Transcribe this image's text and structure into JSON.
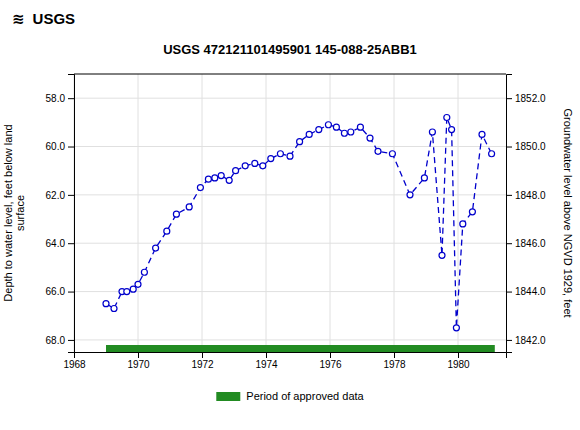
{
  "chart_data": {
    "type": "line",
    "title": "USGS 472121101495901 145-088-25ABB1",
    "annotations": [
      "≋",
      "USGS"
    ],
    "ylabel": "Depth to water level, feet below land\n surface",
    "y2label": "Groundwater level above NGVD 1929, feet",
    "x": [
      1969.0,
      1969.25,
      1969.5,
      1969.65,
      1969.85,
      1970.0,
      1970.2,
      1970.55,
      1970.9,
      1971.2,
      1971.6,
      1971.95,
      1972.2,
      1972.4,
      1972.6,
      1972.85,
      1973.05,
      1973.35,
      1973.65,
      1973.9,
      1974.15,
      1974.45,
      1974.75,
      1975.05,
      1975.35,
      1975.65,
      1975.95,
      1976.2,
      1976.45,
      1976.65,
      1976.95,
      1977.25,
      1977.5,
      1977.95,
      1978.5,
      1978.95,
      1979.2,
      1979.5,
      1979.65,
      1979.8,
      1979.95,
      1980.15,
      1980.45,
      1980.75,
      1981.05
    ],
    "series": [
      {
        "color": "#0000cc",
        "marker": "circle",
        "line_style": "dashed",
        "values": [
          66.5,
          66.7,
          66.0,
          66.0,
          65.9,
          65.7,
          65.2,
          64.2,
          63.5,
          62.8,
          62.5,
          61.7,
          61.35,
          61.3,
          61.2,
          61.4,
          61.0,
          60.8,
          60.7,
          60.8,
          60.5,
          60.3,
          60.4,
          59.8,
          59.5,
          59.3,
          59.1,
          59.2,
          59.45,
          59.4,
          59.2,
          59.65,
          60.2,
          60.3,
          62.0,
          61.3,
          59.4,
          64.5,
          58.8,
          59.3,
          67.5,
          63.2,
          62.7,
          59.5,
          60.3
        ]
      }
    ],
    "spans": [
      {
        "name": "Period of approved data",
        "start": 1969.0,
        "end": 1981.15,
        "color": "#228B22"
      }
    ],
    "xlim": [
      1968,
      1981.5
    ],
    "xticks": [
      1968,
      1970,
      1972,
      1974,
      1976,
      1978,
      1980
    ],
    "ylim": [
      68.5,
      57.0
    ],
    "yticks": [
      {
        "value": 58.0,
        "label": "58.0"
      },
      {
        "value": 60.0,
        "label": "60.0"
      },
      {
        "value": 62.0,
        "label": "62.0"
      },
      {
        "value": 64.0,
        "label": "64.0"
      },
      {
        "value": 66.0,
        "label": "66.0"
      },
      {
        "value": 68.0,
        "label": "68.0"
      }
    ],
    "y2lim": [
      1841.5,
      1853.0
    ],
    "y2ticks": [
      {
        "value": 1842.0,
        "label": "1842.0"
      },
      {
        "value": 1844.0,
        "label": "1844.0"
      },
      {
        "value": 1846.0,
        "label": "1846.0"
      },
      {
        "value": 1848.0,
        "label": "1848.0"
      },
      {
        "value": 1850.0,
        "label": "1850.0"
      },
      {
        "value": 1852.0,
        "label": "1852.0"
      }
    ],
    "grid": true,
    "legend": "bottom"
  }
}
